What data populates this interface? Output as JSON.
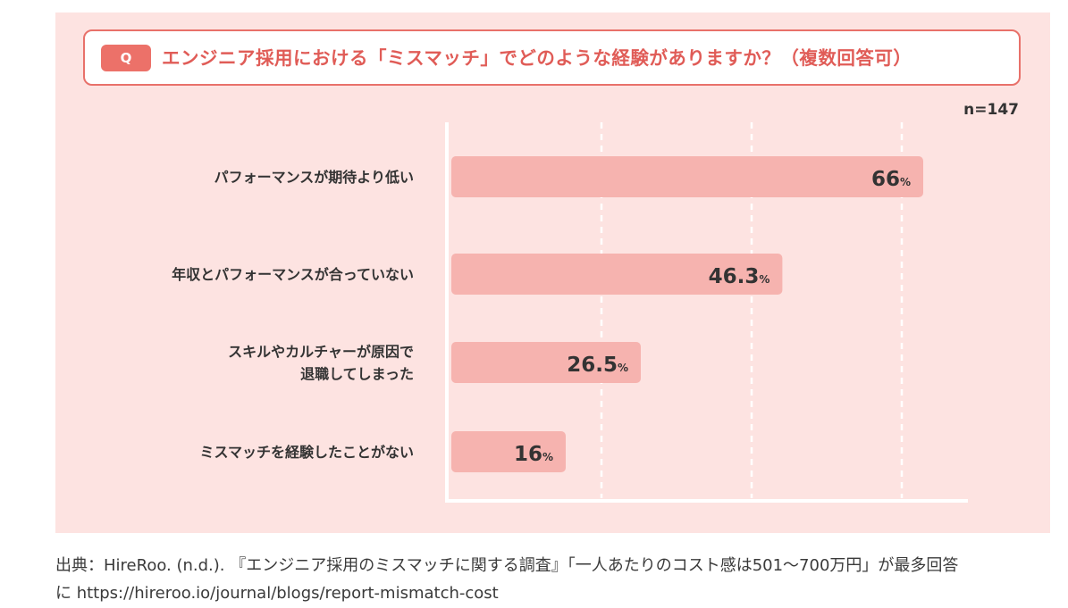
{
  "question": {
    "badge": "Q",
    "text": "エンジニア採用における「ミスマッチ」でどのような経験がありますか？（複数回答可）"
  },
  "sample_size": "n=147",
  "source": {
    "line1": "出典：HireRoo. (n.d.). 『エンジニア採用のミスマッチに関する調査』「一人あたりのコスト感は501～700万円」が最多回答",
    "line2": "に https://hireroo.io/journal/blogs/report-mismatch-cost"
  },
  "colors": {
    "panel": "#fde3e1",
    "bar": "#f6b3af",
    "accent": "#e8716a"
  },
  "chart_data": {
    "type": "bar",
    "orientation": "horizontal",
    "title": "エンジニア採用における「ミスマッチ」でどのような経験がありますか？（複数回答可）",
    "categories": [
      [
        "パフォーマンスが期待より低い"
      ],
      [
        "年収とパフォーマンスが合っていない"
      ],
      [
        "スキルやカルチャーが原因で",
        "退職してしまった"
      ],
      [
        "ミスマッチを経験したことがない"
      ]
    ],
    "values": [
      66,
      46.3,
      26.5,
      16
    ],
    "value_labels": [
      "66",
      "46.3",
      "26.5",
      "16"
    ],
    "unit": "%",
    "xlim": [
      0,
      73
    ],
    "gridlines": [
      21,
      42,
      63
    ],
    "grid": true,
    "legend": "none"
  }
}
